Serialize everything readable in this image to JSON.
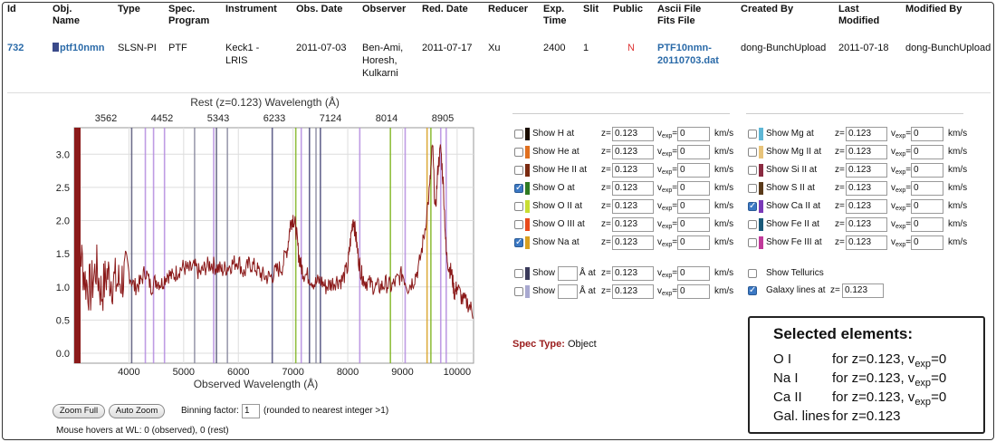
{
  "table": {
    "headers": {
      "id": "Id",
      "obj_name": "Obj.\nName",
      "type": "Type",
      "spec_program": "Spec.\nProgram",
      "instrument": "Instrument",
      "obs_date": "Obs. Date",
      "observer": "Observer",
      "red_date": "Red. Date",
      "reducer": "Reducer",
      "exp_time": "Exp.\nTime",
      "slit": "Slit",
      "public": "Public",
      "ascii_file": "Ascii File\nFits File",
      "created_by": "Created By",
      "last_modified": "Last\nModified",
      "modified_by": "Modified By"
    },
    "row": {
      "id": "732",
      "obj_name": "ptf10nmn",
      "type": "SLSN-PI",
      "spec_program": "PTF",
      "instrument": "Keck1 -\nLRIS",
      "obs_date": "2011-07-03",
      "observer": "Ben-Ami,\nHoresh,\nKulkarni",
      "red_date": "2011-07-17",
      "reducer": "Xu",
      "exp_time": "2400",
      "slit": "1",
      "public": "N",
      "ascii_file": "PTF10nmn-\n20110703.dat",
      "created_by": "dong-BunchUpload",
      "last_modified": "2011-07-18",
      "modified_by": "dong-BunchUpload"
    }
  },
  "chart_data": {
    "type": "line",
    "title": "Rest (z=0.123) Wavelength (Å)",
    "xlabel": "Observed Wavelength (Å)",
    "ylabel": "",
    "xlim": [
      3000,
      10300
    ],
    "ylim": [
      -0.15,
      3.4
    ],
    "x_ticks": [
      4000,
      5000,
      6000,
      7000,
      8000,
      9000,
      10000
    ],
    "y_ticks": [
      0.0,
      0.5,
      1.0,
      1.5,
      2.0,
      2.5,
      3.0
    ],
    "top_ticks": [
      "3562",
      "4452",
      "5343",
      "6233",
      "7124",
      "8014",
      "8905"
    ],
    "grid": true,
    "series": [
      {
        "color": "#8b1a1a",
        "x": [
          3050,
          3100,
          3200,
          3300,
          3400,
          3500,
          3600,
          3700,
          3800,
          3900,
          4000,
          4100,
          4200,
          4300,
          4400,
          4500,
          4600,
          4700,
          4800,
          4900,
          5000,
          5100,
          5200,
          5300,
          5400,
          5500,
          5600,
          5700,
          5800,
          5900,
          6000,
          6100,
          6200,
          6300,
          6400,
          6500,
          6600,
          6700,
          6800,
          6900,
          6950,
          7000,
          7050,
          7100,
          7150,
          7200,
          7300,
          7400,
          7500,
          7600,
          7700,
          7800,
          7900,
          8000,
          8050,
          8100,
          8150,
          8200,
          8250,
          8300,
          8400,
          8500,
          8600,
          8700,
          8800,
          8900,
          9000,
          9100,
          9200,
          9300,
          9400,
          9500,
          9550,
          9600,
          9650,
          9700,
          9750,
          9800,
          9850,
          9900,
          9950,
          10000,
          10100,
          10200,
          10300
        ],
        "y": [
          0.3,
          1.6,
          1.1,
          0.95,
          1.3,
          0.9,
          1.2,
          1.1,
          1.05,
          1.15,
          1.2,
          1.0,
          1.05,
          1.25,
          1.0,
          1.1,
          1.05,
          1.2,
          1.15,
          1.25,
          1.3,
          1.25,
          1.3,
          1.2,
          1.3,
          1.35,
          1.3,
          1.25,
          1.3,
          1.35,
          1.4,
          1.2,
          1.35,
          1.3,
          1.2,
          1.15,
          1.15,
          1.25,
          1.3,
          1.6,
          1.95,
          2.05,
          1.9,
          1.5,
          1.3,
          1.2,
          1.15,
          1.05,
          1.1,
          1.0,
          1.05,
          1.1,
          1.1,
          1.3,
          1.7,
          2.05,
          1.75,
          1.4,
          1.2,
          1.1,
          1.05,
          1.0,
          1.0,
          1.05,
          1.0,
          1.1,
          1.2,
          1.0,
          1.1,
          1.3,
          1.8,
          2.5,
          3.15,
          2.1,
          2.8,
          3.1,
          2.5,
          1.5,
          1.3,
          1.2,
          0.9,
          1.0,
          0.8,
          0.75,
          0.6
        ]
      }
    ],
    "line_markers": [
      {
        "x": 4050,
        "color": "#555577"
      },
      {
        "x": 4300,
        "color": "#b48be0"
      },
      {
        "x": 4450,
        "color": "#b48be0"
      },
      {
        "x": 4650,
        "color": "#b48be0"
      },
      {
        "x": 5200,
        "color": "#8a8aa0"
      },
      {
        "x": 5550,
        "color": "#b48be0"
      },
      {
        "x": 5600,
        "color": "#555577"
      },
      {
        "x": 5800,
        "color": "#8a8aa0"
      },
      {
        "x": 6620,
        "color": "#4a4a7a"
      },
      {
        "x": 7050,
        "color": "#7fb51f"
      },
      {
        "x": 7150,
        "color": "#b48be0"
      },
      {
        "x": 7300,
        "color": "#4a4a7a"
      },
      {
        "x": 7420,
        "color": "#8a8aa0"
      },
      {
        "x": 7500,
        "color": "#4a4a7a"
      },
      {
        "x": 8220,
        "color": "#b48be0"
      },
      {
        "x": 8780,
        "color": "#7fb51f"
      },
      {
        "x": 9050,
        "color": "#b48be0"
      },
      {
        "x": 9450,
        "color": "#d9a020"
      },
      {
        "x": 9520,
        "color": "#7fb51f"
      },
      {
        "x": 9700,
        "color": "#b48be0"
      },
      {
        "x": 9800,
        "color": "#b48be0"
      }
    ]
  },
  "controls": {
    "zoom_full": "Zoom Full",
    "auto_zoom": "Auto Zoom",
    "binning_label": "Binning factor:",
    "binning_value": "1",
    "binning_note": "(rounded to nearest integer >1)",
    "mouse_hover": "Mouse hovers at WL: 0 (observed), 0 (rest)"
  },
  "lines_left": [
    {
      "label": "Show H at",
      "color": "#1a0d00",
      "checked": false,
      "z": "0.123",
      "v": "0"
    },
    {
      "label": "Show He at",
      "color": "#e07020",
      "checked": false,
      "z": "0.123",
      "v": "0"
    },
    {
      "label": "Show He II at",
      "color": "#7a2a10",
      "checked": false,
      "z": "0.123",
      "v": "0"
    },
    {
      "label": "Show O at",
      "color": "#2f7a22",
      "checked": true,
      "z": "0.123",
      "v": "0"
    },
    {
      "label": "Show O II at",
      "color": "#c9dd33",
      "checked": false,
      "z": "0.123",
      "v": "0"
    },
    {
      "label": "Show O III at",
      "color": "#e84a1c",
      "checked": false,
      "z": "0.123",
      "v": "0"
    },
    {
      "label": "Show Na at",
      "color": "#d9a020",
      "checked": true,
      "z": "0.123",
      "v": "0"
    }
  ],
  "lines_right": [
    {
      "label": "Show Mg at",
      "color": "#5eb7d6",
      "checked": false,
      "z": "0.123",
      "v": "0"
    },
    {
      "label": "Show Mg II at",
      "color": "#e8c47a",
      "checked": false,
      "z": "0.123",
      "v": "0"
    },
    {
      "label": "Show Si II at",
      "color": "#8a2a40",
      "checked": false,
      "z": "0.123",
      "v": "0"
    },
    {
      "label": "Show S II at",
      "color": "#5a3a1a",
      "checked": false,
      "z": "0.123",
      "v": "0"
    },
    {
      "label": "Show Ca II at",
      "color": "#7a3ab8",
      "checked": true,
      "z": "0.123",
      "v": "0"
    },
    {
      "label": "Show Fe II at",
      "color": "#1a5a7a",
      "checked": false,
      "z": "0.123",
      "v": "0"
    },
    {
      "label": "Show Fe III at",
      "color": "#c03a9a",
      "checked": false,
      "z": "0.123",
      "v": "0"
    }
  ],
  "custom_lines": [
    {
      "show": "Show",
      "color": "#3a3a5a",
      "checked": false,
      "angstrom_unit": "Å at",
      "z": "0.123",
      "v": "0"
    },
    {
      "show": "Show",
      "color": "#a8a8d0",
      "checked": false,
      "angstrom_unit": "Å at",
      "z": "0.123",
      "v": "0"
    }
  ],
  "extras": {
    "tellurics_label": "Show Tellurics",
    "galaxy_label": "Galaxy lines at",
    "galaxy_z": "0.123",
    "z_label": "z=",
    "v_prefix": "v",
    "v_sub": "exp",
    "v_eq": "=",
    "kms": "km/s"
  },
  "spec_type": {
    "label": "Spec Type:",
    "value": "Object"
  },
  "selected": {
    "title": "Selected elements:",
    "items": [
      {
        "name": "O I",
        "cond": "for z=0.123, v",
        "sub": "exp",
        "tail": "=0"
      },
      {
        "name": "Na I",
        "cond": "for z=0.123, v",
        "sub": "exp",
        "tail": "=0"
      },
      {
        "name": "Ca II",
        "cond": "for z=0.123, v",
        "sub": "exp",
        "tail": "=0"
      },
      {
        "name": "Gal. lines",
        "cond": "for z=0.123",
        "sub": "",
        "tail": ""
      }
    ]
  }
}
